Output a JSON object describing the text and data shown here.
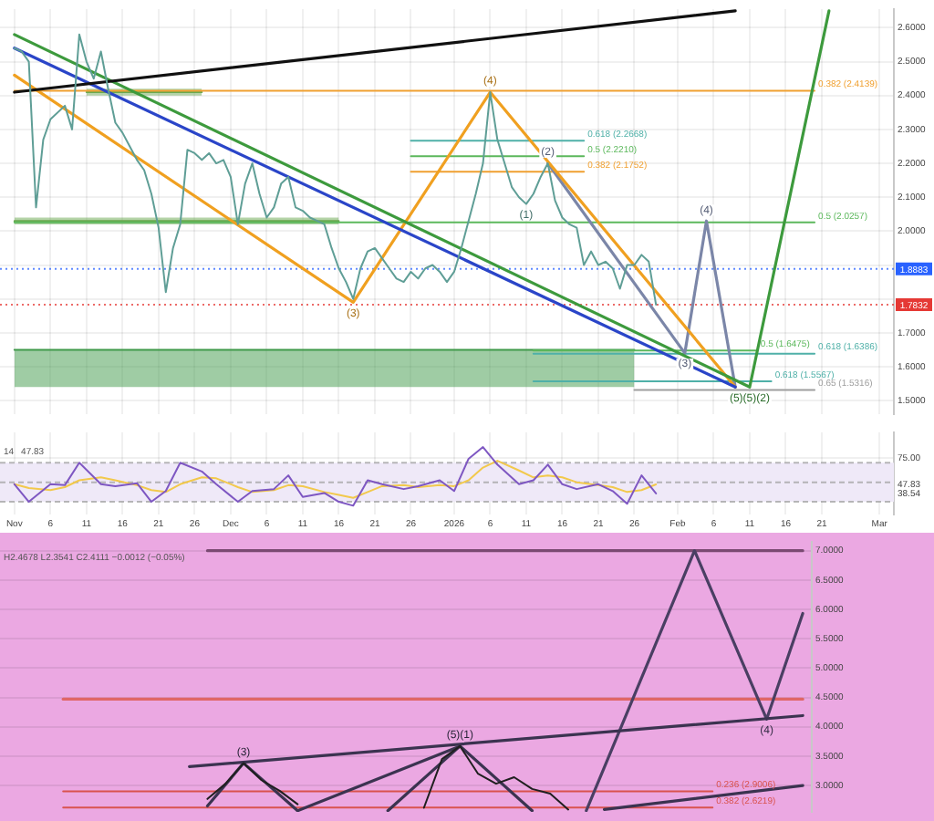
{
  "chart_data": [
    {
      "type": "line",
      "x": [
        "2025-11-01",
        "2025-11-02",
        "2025-11-03",
        "2025-11-04",
        "2025-11-05",
        "2025-11-06",
        "2025-11-08",
        "2025-11-09",
        "2025-11-10",
        "2025-11-11",
        "2025-11-12",
        "2025-11-13",
        "2025-11-14",
        "2025-11-15",
        "2025-11-16",
        "2025-11-17",
        "2025-11-18",
        "2025-11-19",
        "2025-11-20",
        "2025-11-21",
        "2025-11-22",
        "2025-11-23",
        "2025-11-24",
        "2025-11-25",
        "2025-11-26",
        "2025-11-27",
        "2025-11-28",
        "2025-11-29",
        "2025-11-30",
        "2025-12-01",
        "2025-12-02",
        "2025-12-03",
        "2025-12-04",
        "2025-12-05",
        "2025-12-06",
        "2025-12-07",
        "2025-12-08",
        "2025-12-09",
        "2025-12-10",
        "2025-12-11",
        "2025-12-12",
        "2025-12-13",
        "2025-12-14",
        "2025-12-15",
        "2025-12-16",
        "2025-12-17",
        "2025-12-18",
        "2025-12-19",
        "2025-12-20",
        "2025-12-21",
        "2025-12-22",
        "2025-12-23",
        "2025-12-24",
        "2025-12-25",
        "2025-12-26",
        "2025-12-27",
        "2025-12-28",
        "2025-12-29",
        "2025-12-30",
        "2025-12-31",
        "2026-01-01",
        "2026-01-02",
        "2026-01-03",
        "2026-01-04",
        "2026-01-05",
        "2026-01-06",
        "2026-01-07",
        "2026-01-08",
        "2026-01-09",
        "2026-01-10",
        "2026-01-11",
        "2026-01-12",
        "2026-01-13",
        "2026-01-14",
        "2026-01-15",
        "2026-01-16",
        "2026-01-17",
        "2026-01-18",
        "2026-01-19",
        "2026-01-20",
        "2026-01-21",
        "2026-01-22",
        "2026-01-23",
        "2026-01-24",
        "2026-01-25",
        "2026-01-26",
        "2026-01-27",
        "2026-01-28",
        "2026-01-29"
      ],
      "series": [
        {
          "color": "#5f9e96",
          "values": [
            2.54,
            2.53,
            2.5,
            2.07,
            2.27,
            2.33,
            2.37,
            2.3,
            2.58,
            2.5,
            2.45,
            2.53,
            2.42,
            2.32,
            2.29,
            2.25,
            2.21,
            2.18,
            2.11,
            2.01,
            1.82,
            1.95,
            2.02,
            2.24,
            2.23,
            2.21,
            2.23,
            2.2,
            2.21,
            2.16,
            2.02,
            2.14,
            2.2,
            2.11,
            2.04,
            2.07,
            2.14,
            2.16,
            2.07,
            2.06,
            2.04,
            2.03,
            2.02,
            1.95,
            1.89,
            1.85,
            1.8,
            1.89,
            1.94,
            1.95,
            1.92,
            1.89,
            1.86,
            1.85,
            1.88,
            1.86,
            1.89,
            1.9,
            1.88,
            1.85,
            1.88,
            1.95,
            2.03,
            2.11,
            2.2,
            2.41,
            2.27,
            2.2,
            2.13,
            2.1,
            2.08,
            2.11,
            2.16,
            2.2,
            2.09,
            2.04,
            2.02,
            2.01,
            1.9,
            1.94,
            1.9,
            1.91,
            1.89,
            1.83,
            1.9,
            1.9,
            1.93,
            1.91,
            1.7832
          ]
        },
        {
          "x": [
            "2025-11-01",
            "2026-02-09"
          ],
          "values": [
            2.41,
            2.65
          ],
          "color": "#111111"
        },
        {
          "x": [
            "2025-11-01",
            "2026-02-09"
          ],
          "values": [
            2.54,
            1.54
          ],
          "color": "#2a45c8"
        },
        {
          "x": [
            "2025-11-01",
            "2026-02-11",
            "2026-02-22"
          ],
          "values": [
            2.58,
            1.54,
            2.65
          ],
          "color": "#3d9a3d"
        },
        {
          "x": [
            "2025-11-01",
            "2025-12-18",
            "2026-01-06",
            "2026-02-09"
          ],
          "values": [
            2.46,
            1.79,
            2.41,
            1.54
          ],
          "color": "#f0a020"
        },
        {
          "x": [
            "2026-01-14",
            "2026-02-02",
            "2026-02-05",
            "2026-02-09"
          ],
          "values": [
            2.2,
            1.64,
            2.03,
            1.54
          ],
          "color": "#7b86a8"
        },
        {
          "name": "0.382 (2.4139)",
          "x": [
            "2025-11-01",
            "2026-02-20"
          ],
          "values": [
            2.4139,
            2.4139
          ],
          "color": "#f0a030"
        },
        {
          "name": "0.618 (2.2668)",
          "x": [
            "2025-12-26",
            "2026-01-19"
          ],
          "values": [
            2.2668,
            2.2668
          ],
          "color": "#4fb0a8"
        },
        {
          "name": "0.5 (2.2210)",
          "x": [
            "2025-12-26",
            "2026-01-19"
          ],
          "values": [
            2.221,
            2.221
          ],
          "color": "#5cb85c"
        },
        {
          "name": "0.382 (2.1752)",
          "x": [
            "2025-12-26",
            "2026-01-19"
          ],
          "values": [
            2.1752,
            2.1752
          ],
          "color": "#f0a030"
        },
        {
          "name": "0.5 (2.0257)",
          "x": [
            "2025-11-01",
            "2026-02-20"
          ],
          "values": [
            2.0257,
            2.0257
          ],
          "color": "#5cb85c"
        },
        {
          "name": "0.5 (1.6475)",
          "x": [
            "2026-01-12",
            "2026-02-12"
          ],
          "values": [
            1.6475,
            1.6475
          ],
          "color": "#5cb85c"
        },
        {
          "name": "0.618 (1.6386)",
          "x": [
            "2026-01-12",
            "2026-02-20"
          ],
          "values": [
            1.6386,
            1.6386
          ],
          "color": "#4fb0a8"
        },
        {
          "name": "0.618 (1.5567)",
          "x": [
            "2026-01-12",
            "2026-02-14"
          ],
          "values": [
            1.5567,
            1.5567
          ],
          "color": "#4fb0a8"
        },
        {
          "name": "0.65 (1.5316)",
          "x": [
            "2026-01-26",
            "2026-02-20"
          ],
          "values": [
            1.5316,
            1.5316
          ],
          "color": "#9e9e9e"
        },
        {
          "x": [
            "2025-11-01",
            "2026-01-26"
          ],
          "values": [
            1.65,
            1.65
          ],
          "lower": [
            1.54,
            1.54
          ],
          "upper": [
            1.65,
            1.65
          ],
          "color": "#3f9a4a"
        },
        {
          "x": [
            "2025-11-11",
            "2025-11-27"
          ],
          "values": [
            2.41,
            2.41
          ],
          "lower": [
            2.4,
            2.4
          ],
          "upper": [
            2.42,
            2.42
          ],
          "color": "#6aa84f"
        },
        {
          "x": [
            "2025-11-01",
            "2025-12-16"
          ],
          "values": [
            2.03,
            2.03
          ],
          "lower": [
            2.02,
            2.02
          ],
          "upper": [
            2.04,
            2.04
          ],
          "color": "#6aa84f"
        }
      ],
      "xlim": [
        "2025-10-30",
        "2026-03-03"
      ],
      "xticks": [
        {
          "value": "2025-11-01",
          "label": null
        },
        {
          "value": "2025-11-06",
          "label": null
        },
        {
          "value": "2025-11-11",
          "label": null
        },
        {
          "value": "2025-11-16",
          "label": null
        },
        {
          "value": "2025-11-21",
          "label": null
        },
        {
          "value": "2025-11-26",
          "label": null
        },
        {
          "value": "2025-12-01",
          "label": null
        },
        {
          "value": "2025-12-06",
          "label": null
        },
        {
          "value": "2025-12-11",
          "label": null
        },
        {
          "value": "2025-12-16",
          "label": null
        },
        {
          "value": "2025-12-21",
          "label": null
        },
        {
          "value": "2025-12-26",
          "label": null
        },
        {
          "value": "2026-01-01",
          "label": null
        },
        {
          "value": "2026-01-06",
          "label": null
        },
        {
          "value": "2026-01-11",
          "label": null
        },
        {
          "value": "2026-01-16",
          "label": null
        },
        {
          "value": "2026-01-21",
          "label": null
        },
        {
          "value": "2026-01-26",
          "label": null
        },
        {
          "value": "2026-02-01",
          "label": null
        },
        {
          "value": "2026-02-06",
          "label": null
        },
        {
          "value": "2026-02-11",
          "label": null
        },
        {
          "value": "2026-02-16",
          "label": null
        },
        {
          "value": "2026-02-21",
          "label": null
        },
        {
          "value": "2026-03-01",
          "label": null
        }
      ],
      "ylim": [
        1.46,
        2.655
      ],
      "yticks": [
        {
          "value": 2.6,
          "label": "2.6000"
        },
        {
          "value": 2.5,
          "label": "2.5000"
        },
        {
          "value": 2.4,
          "label": "2.4000"
        },
        {
          "value": 2.3,
          "label": "2.3000"
        },
        {
          "value": 2.2,
          "label": "2.2000"
        },
        {
          "value": 2.1,
          "label": "2.1000"
        },
        {
          "value": 2,
          "label": "2.0000"
        },
        {
          "value": 1.9,
          "label": null
        },
        {
          "value": 1.8,
          "label": null
        },
        {
          "value": 1.7,
          "label": "1.7000"
        },
        {
          "value": 1.6,
          "label": "1.6000"
        },
        {
          "value": 1.5,
          "label": "1.5000"
        }
      ],
      "ref_lines": [
        {
          "axis": "y",
          "value": 1.8883,
          "label": "1.8883",
          "color": "#2962ff",
          "line_style": "dotted"
        },
        {
          "axis": "y",
          "value": 1.7832,
          "label": "1.7832",
          "color": "#e53935",
          "line_style": "dotted"
        }
      ],
      "annotations": [
        {
          "text": "(4)",
          "x": "2026-01-06",
          "y": 2.41
        },
        {
          "text": "(3)",
          "x": "2025-12-18",
          "y": 1.79
        },
        {
          "text": "(2)",
          "x": "2026-01-14",
          "y": 2.2
        },
        {
          "text": "(1)",
          "x": "2026-01-11",
          "y": 2.08
        },
        {
          "text": "(4)",
          "x": "2026-02-05",
          "y": 2.03
        },
        {
          "text": "(3)",
          "x": "2026-02-02",
          "y": 1.64
        },
        {
          "text": "(5)(5)(2)",
          "x": "2026-02-11",
          "y": 1.54
        }
      ],
      "grid": true,
      "tick_labels": "y"
    },
    {
      "type": "line",
      "x": [
        "2025-11-01",
        "2025-11-03",
        "2025-11-06",
        "2025-11-08",
        "2025-11-10",
        "2025-11-13",
        "2025-11-15",
        "2025-11-18",
        "2025-11-20",
        "2025-11-22",
        "2025-11-24",
        "2025-11-27",
        "2025-11-29",
        "2025-12-02",
        "2025-12-04",
        "2025-12-07",
        "2025-12-09",
        "2025-12-11",
        "2025-12-14",
        "2025-12-16",
        "2025-12-18",
        "2025-12-20",
        "2025-12-22",
        "2025-12-25",
        "2025-12-27",
        "2025-12-30",
        "2026-01-01",
        "2026-01-03",
        "2026-01-05",
        "2026-01-07",
        "2026-01-10",
        "2026-01-12",
        "2026-01-14",
        "2026-01-16",
        "2026-01-18",
        "2026-01-21",
        "2026-01-23",
        "2026-01-25",
        "2026-01-27",
        "2026-01-29"
      ],
      "series": [
        {
          "color": "#7e57c2",
          "values": [
            48,
            30,
            48,
            47,
            70,
            48,
            46,
            49,
            30,
            41,
            70,
            61,
            48,
            30,
            41,
            43,
            57,
            35,
            39,
            30,
            26,
            52,
            48,
            43,
            46,
            52,
            41,
            74,
            86,
            68,
            48,
            52,
            68,
            48,
            43,
            48,
            41,
            28,
            57,
            38.54
          ]
        },
        {
          "color": "#f2c94c",
          "values": [
            48,
            44,
            42,
            45,
            52,
            55,
            52,
            47,
            42,
            40,
            48,
            55,
            54,
            45,
            40,
            42,
            47,
            46,
            40,
            37,
            34,
            40,
            46,
            47,
            45,
            47,
            46,
            52,
            65,
            72,
            62,
            55,
            57,
            55,
            50,
            47,
            45,
            40,
            42,
            47.83
          ]
        }
      ],
      "xlim": [
        "2025-10-30",
        "2026-03-03"
      ],
      "xticks": [
        {
          "value": "2025-11-01",
          "label": "Nov"
        },
        {
          "value": "2025-11-06",
          "label": "6"
        },
        {
          "value": "2025-11-11",
          "label": "11"
        },
        {
          "value": "2025-11-16",
          "label": "16"
        },
        {
          "value": "2025-11-21",
          "label": "21"
        },
        {
          "value": "2025-11-26",
          "label": "26"
        },
        {
          "value": "2025-12-01",
          "label": "Dec"
        },
        {
          "value": "2025-12-06",
          "label": "6"
        },
        {
          "value": "2025-12-11",
          "label": "11"
        },
        {
          "value": "2025-12-16",
          "label": "16"
        },
        {
          "value": "2025-12-21",
          "label": "21"
        },
        {
          "value": "2025-12-26",
          "label": "26"
        },
        {
          "value": "2026-01-01",
          "label": "2026"
        },
        {
          "value": "2026-01-06",
          "label": "6"
        },
        {
          "value": "2026-01-11",
          "label": "11"
        },
        {
          "value": "2026-01-16",
          "label": "16"
        },
        {
          "value": "2026-01-21",
          "label": "21"
        },
        {
          "value": "2026-01-26",
          "label": "26"
        },
        {
          "value": "2026-02-01",
          "label": "Feb"
        },
        {
          "value": "2026-02-06",
          "label": "6"
        },
        {
          "value": "2026-02-11",
          "label": "11"
        },
        {
          "value": "2026-02-16",
          "label": "16"
        },
        {
          "value": "2026-02-21",
          "label": "21"
        },
        {
          "value": "2026-03-01",
          "label": "Mar"
        }
      ],
      "ylim": [
        17,
        101
      ],
      "yticks": [
        {
          "value": 75,
          "label": "75.00"
        },
        {
          "value": 47.83,
          "label": "47.83"
        },
        {
          "value": 38.54,
          "label": "38.54"
        }
      ],
      "bands": [
        {
          "axis": "y",
          "from": 30,
          "to": 70,
          "color": "#efe9f8"
        }
      ],
      "ref_lines": [
        {
          "axis": "y",
          "value": 70,
          "color": "#a0a0a0",
          "line_style": "dashed"
        },
        {
          "axis": "y",
          "value": 50,
          "color": "#a0a0a0",
          "line_style": "dashed"
        },
        {
          "axis": "y",
          "value": 30,
          "color": "#a0a0a0",
          "line_style": "dashed"
        }
      ],
      "annotations": [
        "14",
        "47.83"
      ],
      "grid": true
    },
    {
      "type": "line",
      "categories": [
        null,
        null,
        null,
        null,
        null,
        null,
        null,
        null,
        null,
        null,
        null,
        null,
        null,
        null,
        null,
        null,
        null,
        null,
        null,
        null,
        null,
        null,
        null,
        null,
        null,
        null,
        null,
        null,
        null,
        null,
        null,
        null,
        null,
        null,
        null,
        null,
        null,
        null,
        null,
        null,
        null,
        null,
        null,
        null,
        null
      ],
      "series": [
        {
          "color": "#1f1f1f",
          "values": [
            null,
            null,
            null,
            null,
            null,
            null,
            null,
            null,
            null,
            null,
            null,
            2.77,
            3.03,
            3.38,
            3.09,
            2.91,
            2.68,
            null,
            null,
            null,
            null,
            null,
            null,
            null,
            null,
            null,
            null,
            null,
            null,
            null,
            null,
            null,
            null,
            null,
            null,
            null,
            null,
            null,
            null,
            null,
            null,
            null,
            null,
            null,
            null
          ]
        },
        {
          "color": "#1f1f1f",
          "values": [
            null,
            null,
            null,
            null,
            null,
            null,
            null,
            null,
            null,
            null,
            null,
            null,
            null,
            null,
            null,
            null,
            null,
            null,
            null,
            null,
            null,
            null,
            null,
            2.62,
            3.45,
            3.67,
            3.2,
            3.03,
            3.14,
            2.94,
            2.86,
            2.59,
            null,
            null,
            null,
            null,
            null,
            null,
            null,
            null,
            null,
            null,
            null,
            null,
            null
          ]
        },
        {
          "color": "#3b3350",
          "values": [
            null,
            null,
            null,
            null,
            null,
            null,
            null,
            null,
            null,
            null,
            null,
            2.65,
            null,
            3.38,
            null,
            null,
            2.57,
            null,
            null,
            null,
            null,
            null,
            null,
            null,
            null,
            null,
            null,
            null,
            null,
            null,
            null,
            null,
            null,
            null,
            null,
            null,
            null,
            null,
            null,
            null,
            null,
            null,
            null,
            null,
            null
          ],
          "value_labels": [
            null,
            null,
            null,
            null,
            null,
            null,
            null,
            null,
            null,
            null,
            null,
            null,
            null,
            "(3)",
            null,
            null,
            null,
            null,
            null,
            null,
            null,
            null,
            null,
            null,
            null,
            null,
            null,
            null,
            null,
            null,
            null,
            null,
            null,
            null,
            null,
            null,
            null,
            null,
            null,
            null,
            null,
            null,
            null,
            null,
            null
          ]
        },
        {
          "color": "#3b3350",
          "values": [
            null,
            null,
            null,
            null,
            null,
            null,
            null,
            null,
            null,
            null,
            null,
            null,
            null,
            null,
            null,
            null,
            2.57,
            null,
            null,
            null,
            null,
            null,
            null,
            null,
            null,
            3.67,
            null,
            null,
            null,
            2.57,
            null,
            null,
            null,
            null,
            null,
            null,
            null,
            null,
            null,
            null,
            null,
            null,
            null,
            null,
            null
          ],
          "value_labels": [
            null,
            null,
            null,
            null,
            null,
            null,
            null,
            null,
            null,
            null,
            null,
            null,
            null,
            null,
            null,
            null,
            null,
            null,
            null,
            null,
            null,
            null,
            null,
            null,
            null,
            "(5)(1)",
            null,
            null,
            null,
            null,
            null,
            null,
            null,
            null,
            null,
            null,
            null,
            null,
            null,
            null,
            null,
            null,
            null,
            null,
            null
          ]
        },
        {
          "color": "#3b3350",
          "values": [
            null,
            null,
            null,
            null,
            null,
            null,
            null,
            null,
            null,
            null,
            null,
            null,
            null,
            null,
            null,
            null,
            null,
            null,
            null,
            null,
            null,
            2.57,
            null,
            null,
            null,
            3.67,
            null,
            null,
            null,
            null,
            null,
            null,
            null,
            null,
            null,
            null,
            null,
            null,
            null,
            null,
            null,
            null,
            null,
            null,
            null
          ]
        },
        {
          "color": "#3b3350",
          "values": [
            null,
            null,
            null,
            null,
            null,
            null,
            null,
            null,
            null,
            null,
            3.32,
            null,
            null,
            null,
            null,
            null,
            null,
            null,
            null,
            null,
            null,
            null,
            null,
            null,
            null,
            null,
            null,
            null,
            null,
            null,
            null,
            null,
            null,
            null,
            null,
            null,
            null,
            null,
            null,
            null,
            null,
            null,
            null,
            null,
            4.19
          ]
        },
        {
          "color": "#3b3350",
          "values": [
            null,
            null,
            null,
            null,
            null,
            null,
            null,
            null,
            null,
            null,
            null,
            null,
            null,
            null,
            null,
            null,
            null,
            null,
            null,
            null,
            null,
            null,
            null,
            null,
            null,
            null,
            null,
            null,
            null,
            null,
            null,
            null,
            null,
            2.59,
            null,
            null,
            null,
            null,
            null,
            null,
            null,
            null,
            null,
            null,
            3.0
          ]
        },
        {
          "color": "#4a3f63",
          "values": [
            null,
            null,
            null,
            null,
            null,
            null,
            null,
            null,
            null,
            null,
            null,
            null,
            null,
            null,
            null,
            null,
            null,
            null,
            null,
            null,
            null,
            null,
            null,
            null,
            null,
            null,
            null,
            null,
            null,
            null,
            null,
            null,
            2.57,
            null,
            null,
            null,
            null,
            null,
            7.0,
            null,
            null,
            null,
            4.13,
            null,
            5.93
          ],
          "value_labels": [
            null,
            null,
            null,
            null,
            null,
            null,
            null,
            null,
            null,
            null,
            null,
            null,
            null,
            null,
            null,
            null,
            null,
            null,
            null,
            null,
            null,
            null,
            null,
            null,
            null,
            null,
            null,
            null,
            null,
            null,
            null,
            null,
            null,
            null,
            null,
            null,
            null,
            null,
            null,
            null,
            null,
            null,
            "(4)",
            null,
            null
          ]
        },
        {
          "color": "#7a4a72",
          "values": [
            null,
            null,
            null,
            null,
            null,
            null,
            null,
            null,
            null,
            null,
            null,
            7.0,
            null,
            null,
            null,
            null,
            null,
            null,
            null,
            null,
            null,
            null,
            null,
            null,
            null,
            null,
            null,
            null,
            null,
            null,
            null,
            null,
            null,
            null,
            null,
            null,
            null,
            null,
            null,
            null,
            null,
            null,
            null,
            null,
            7.0
          ]
        },
        {
          "color": "#e06666",
          "values": [
            null,
            null,
            null,
            4.47,
            null,
            null,
            null,
            null,
            null,
            null,
            null,
            null,
            null,
            null,
            null,
            null,
            null,
            null,
            null,
            null,
            null,
            null,
            null,
            null,
            null,
            null,
            null,
            null,
            null,
            null,
            null,
            null,
            null,
            null,
            null,
            null,
            null,
            null,
            null,
            null,
            null,
            null,
            null,
            null,
            4.47
          ]
        },
        {
          "name": "0.236 (2.9006)",
          "color": "#d9534f",
          "values": [
            null,
            null,
            null,
            2.9006,
            null,
            null,
            null,
            null,
            null,
            null,
            null,
            null,
            null,
            null,
            null,
            null,
            null,
            null,
            null,
            null,
            null,
            null,
            null,
            null,
            null,
            null,
            null,
            null,
            null,
            null,
            null,
            null,
            null,
            null,
            null,
            null,
            null,
            null,
            null,
            2.9006,
            null,
            null,
            null,
            null,
            null
          ]
        },
        {
          "name": "0.382 (2.6219)",
          "color": "#d9534f",
          "values": [
            null,
            null,
            null,
            2.6219,
            null,
            null,
            null,
            null,
            null,
            null,
            null,
            null,
            null,
            null,
            null,
            null,
            null,
            null,
            null,
            null,
            null,
            null,
            null,
            null,
            null,
            null,
            null,
            null,
            null,
            null,
            null,
            null,
            null,
            null,
            null,
            null,
            null,
            null,
            null,
            2.6219,
            null,
            null,
            null,
            null,
            null
          ]
        }
      ],
      "ylim": [
        2.55,
        7.15
      ],
      "yticks": [
        {
          "value": 7,
          "label": "7.0000"
        },
        {
          "value": 6.5,
          "label": "6.5000"
        },
        {
          "value": 6,
          "label": "6.0000"
        },
        {
          "value": 5.5,
          "label": "5.5000"
        },
        {
          "value": 5,
          "label": "5.0000"
        },
        {
          "value": 4.5,
          "label": "4.5000"
        },
        {
          "value": 4,
          "label": "4.0000"
        },
        {
          "value": 3.5,
          "label": "3.5000"
        },
        {
          "value": 3,
          "label": "3.0000"
        }
      ],
      "annotations": [
        "H2.4678 L2.3541 C2.4111 −0.0012 (−0.05%)"
      ],
      "grid": "y"
    }
  ]
}
